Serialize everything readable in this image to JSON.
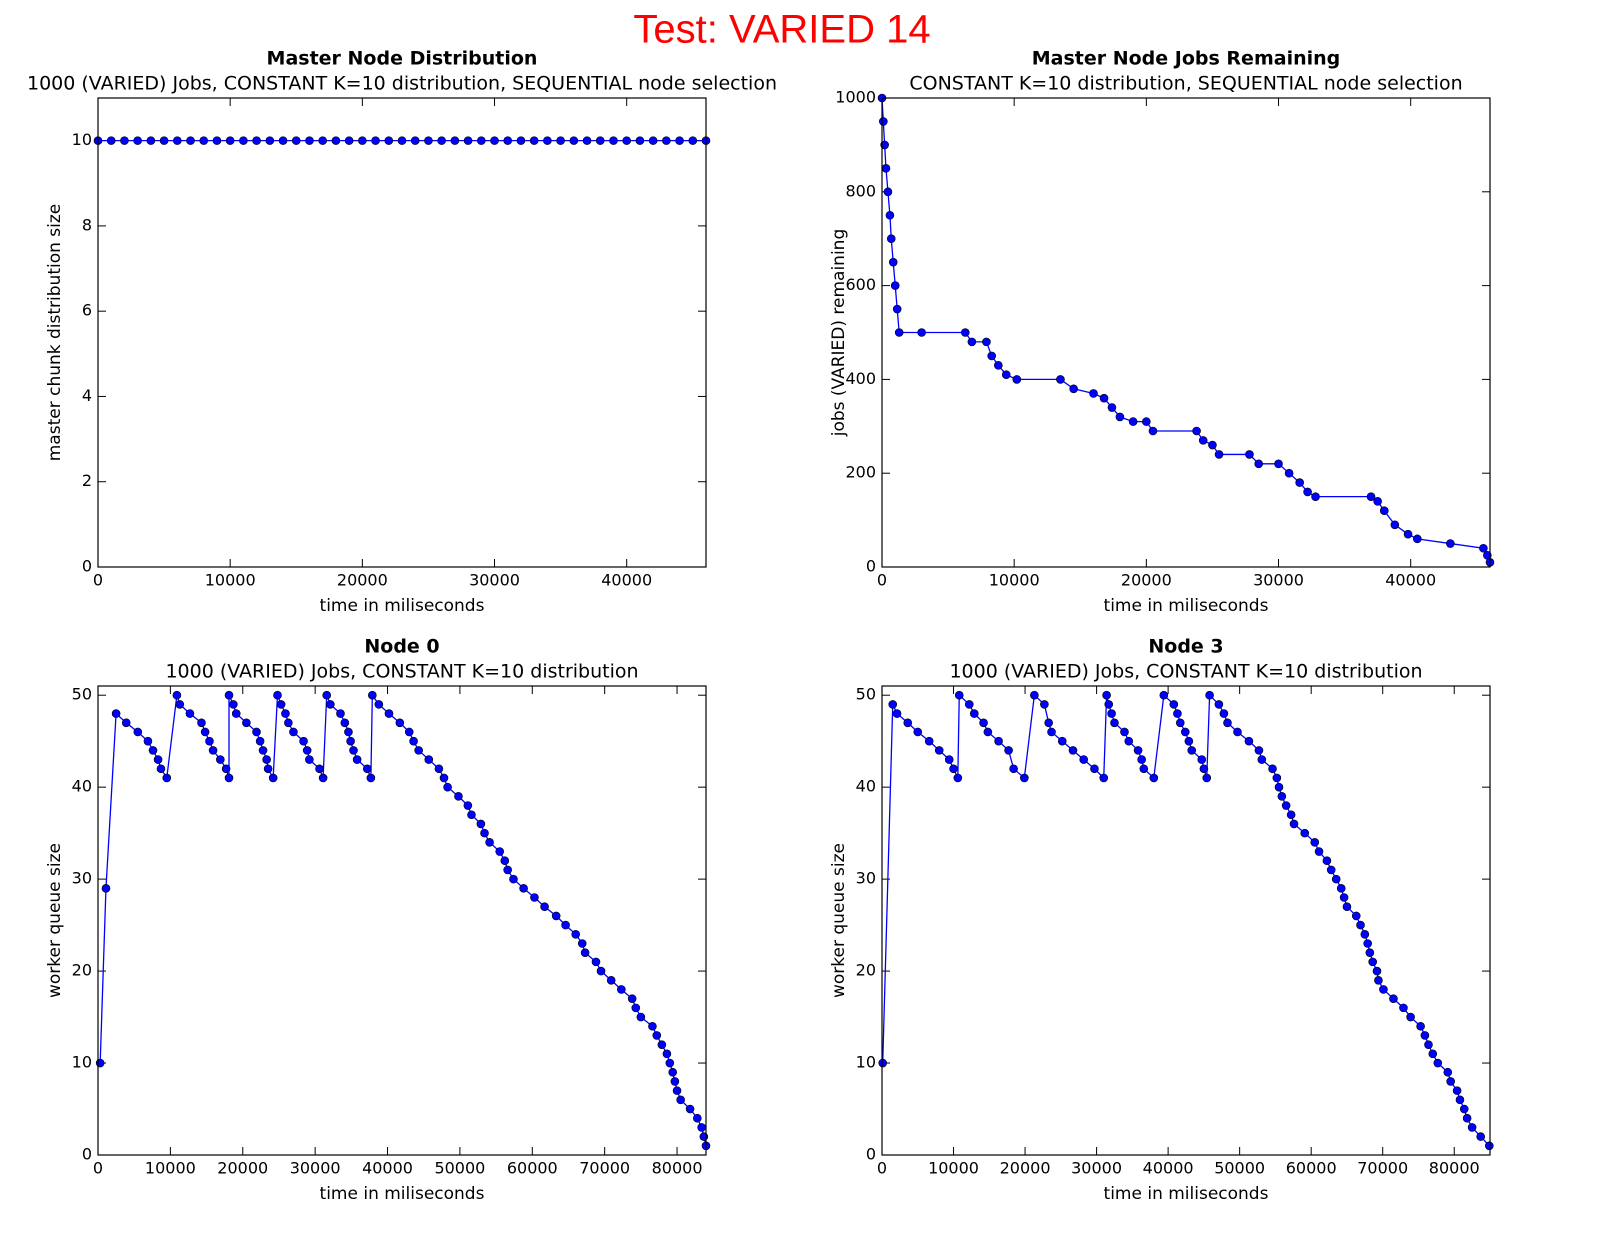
{
  "title": "Test: VARIED 14",
  "chart_data": [
    {
      "type": "line",
      "title": "Master Node Distribution",
      "subtitle": "1000 (VARIED) Jobs, CONSTANT K=10 distribution, SEQUENTIAL node selection",
      "xlabel": "time in miliseconds",
      "ylabel": "master chunk distribution size",
      "color": "#0000ff",
      "x": [
        0,
        1000,
        2000,
        3000,
        4000,
        5000,
        6000,
        7000,
        8000,
        9000,
        10000,
        11000,
        12000,
        13000,
        14000,
        15000,
        16000,
        17000,
        18000,
        19000,
        20000,
        21000,
        22000,
        23000,
        24000,
        25000,
        26000,
        27000,
        28000,
        29000,
        30000,
        31000,
        32000,
        33000,
        34000,
        35000,
        36000,
        37000,
        38000,
        39000,
        40000,
        41000,
        42000,
        43000,
        44000,
        45000,
        46000
      ],
      "values": [
        10,
        10,
        10,
        10,
        10,
        10,
        10,
        10,
        10,
        10,
        10,
        10,
        10,
        10,
        10,
        10,
        10,
        10,
        10,
        10,
        10,
        10,
        10,
        10,
        10,
        10,
        10,
        10,
        10,
        10,
        10,
        10,
        10,
        10,
        10,
        10,
        10,
        10,
        10,
        10,
        10,
        10,
        10,
        10,
        10,
        10,
        10
      ],
      "xlim": [
        0,
        46000
      ],
      "xticks": [
        0,
        10000,
        20000,
        30000,
        40000
      ],
      "ylim": [
        0,
        11
      ],
      "yticks": [
        0,
        2,
        4,
        6,
        8,
        10
      ]
    },
    {
      "type": "line",
      "title": "Master Node Jobs Remaining",
      "subtitle": "CONSTANT K=10 distribution, SEQUENTIAL node selection",
      "xlabel": "time in miliseconds",
      "ylabel": "jobs (VARIED) remaining",
      "color": "#0000ff",
      "x": [
        0,
        100,
        200,
        300,
        450,
        600,
        700,
        850,
        1000,
        1150,
        1300,
        3000,
        6300,
        6800,
        7900,
        8300,
        8800,
        9400,
        10200,
        13500,
        14500,
        16000,
        16800,
        17400,
        18000,
        19000,
        20000,
        20500,
        23800,
        24300,
        25000,
        25500,
        27800,
        28500,
        30000,
        30800,
        31600,
        32200,
        32800,
        37000,
        37500,
        38000,
        38800,
        39800,
        40500,
        43000,
        45500,
        45800,
        46000
      ],
      "values": [
        1000,
        950,
        900,
        850,
        800,
        750,
        700,
        650,
        600,
        550,
        500,
        500,
        500,
        480,
        480,
        450,
        430,
        410,
        400,
        400,
        380,
        370,
        360,
        340,
        320,
        310,
        310,
        290,
        290,
        270,
        260,
        240,
        240,
        220,
        220,
        200,
        180,
        160,
        150,
        150,
        140,
        120,
        90,
        70,
        60,
        50,
        40,
        25,
        10
      ],
      "xlim": [
        0,
        46000
      ],
      "xticks": [
        0,
        10000,
        20000,
        30000,
        40000
      ],
      "ylim": [
        0,
        1000
      ],
      "yticks": [
        0,
        200,
        400,
        600,
        800,
        1000
      ]
    },
    {
      "type": "line",
      "title": "Node 0",
      "subtitle": "1000 (VARIED) Jobs, CONSTANT K=10 distribution",
      "xlabel": "time in miliseconds",
      "ylabel": "worker queue size",
      "color": "#0000ff",
      "x": [
        300,
        1100,
        2500,
        3900,
        5500,
        6900,
        7600,
        8300,
        8700,
        9500,
        10900,
        11300,
        12700,
        14300,
        14800,
        15400,
        15900,
        16900,
        17700,
        18100,
        18100,
        18700,
        19100,
        20500,
        21900,
        22400,
        22800,
        23300,
        23500,
        24200,
        24800,
        25300,
        25900,
        26300,
        27000,
        28400,
        28900,
        29200,
        30600,
        31100,
        31600,
        32100,
        33500,
        34100,
        34600,
        34900,
        35300,
        35800,
        37200,
        37700,
        37900,
        38800,
        40200,
        41700,
        43000,
        43600,
        44300,
        45700,
        47100,
        47800,
        48300,
        49800,
        51100,
        51600,
        52900,
        53400,
        54100,
        55500,
        56200,
        56600,
        57400,
        58800,
        60300,
        61700,
        63300,
        64600,
        66000,
        66900,
        67300,
        68800,
        69500,
        70900,
        72300,
        73800,
        74300,
        75000,
        76600,
        77200,
        77900,
        78600,
        79000,
        79400,
        79700,
        80000,
        80500,
        81800,
        82800,
        83400,
        83700,
        84000
      ],
      "values": [
        10,
        29,
        48,
        47,
        46,
        45,
        44,
        43,
        42,
        41,
        50,
        49,
        48,
        47,
        46,
        45,
        44,
        43,
        42,
        41,
        50,
        49,
        48,
        47,
        46,
        45,
        44,
        43,
        42,
        41,
        50,
        49,
        48,
        47,
        46,
        45,
        44,
        43,
        42,
        41,
        50,
        49,
        48,
        47,
        46,
        45,
        44,
        43,
        42,
        41,
        50,
        49,
        48,
        47,
        46,
        45,
        44,
        43,
        42,
        41,
        40,
        39,
        38,
        37,
        36,
        35,
        34,
        33,
        32,
        31,
        30,
        29,
        28,
        27,
        26,
        25,
        24,
        23,
        22,
        21,
        20,
        19,
        18,
        17,
        16,
        15,
        14,
        13,
        12,
        11,
        10,
        9,
        8,
        7,
        6,
        5,
        4,
        3,
        2,
        1
      ],
      "xlim": [
        0,
        84000
      ],
      "xticks": [
        0,
        10000,
        20000,
        30000,
        40000,
        50000,
        60000,
        70000,
        80000
      ],
      "ylim": [
        0,
        51
      ],
      "yticks": [
        0,
        10,
        20,
        30,
        40,
        50
      ]
    },
    {
      "type": "line",
      "title": "Node 3",
      "subtitle": "1000 (VARIED) Jobs, CONSTANT K=10 distribution",
      "xlabel": "time in miliseconds",
      "ylabel": "worker queue size",
      "color": "#0000ff",
      "x": [
        100,
        1500,
        2100,
        3600,
        5000,
        6600,
        8000,
        9400,
        10000,
        10600,
        10800,
        12200,
        12900,
        14200,
        14800,
        16300,
        17700,
        18400,
        19900,
        21300,
        22700,
        23300,
        23700,
        25200,
        26700,
        28200,
        29700,
        31000,
        31400,
        31700,
        32100,
        32500,
        33900,
        34500,
        35800,
        36300,
        36600,
        38000,
        39400,
        40800,
        41300,
        41700,
        42400,
        42900,
        43300,
        44700,
        45000,
        45400,
        45800,
        47100,
        47800,
        48300,
        49700,
        51300,
        52700,
        53100,
        54600,
        55200,
        55500,
        55900,
        56500,
        57200,
        57600,
        59100,
        60500,
        61100,
        62200,
        62800,
        63500,
        64200,
        64600,
        65000,
        66300,
        66900,
        67500,
        67900,
        68200,
        68600,
        69200,
        69400,
        70100,
        71500,
        72900,
        73900,
        75300,
        75900,
        76400,
        77000,
        77700,
        79100,
        79500,
        80400,
        80800,
        81400,
        81800,
        82500,
        83700,
        84900
      ],
      "values": [
        10,
        49,
        48,
        47,
        46,
        45,
        44,
        43,
        42,
        41,
        50,
        49,
        48,
        47,
        46,
        45,
        44,
        42,
        41,
        50,
        49,
        47,
        46,
        45,
        44,
        43,
        42,
        41,
        50,
        49,
        48,
        47,
        46,
        45,
        44,
        43,
        42,
        41,
        50,
        49,
        48,
        47,
        46,
        45,
        44,
        43,
        42,
        41,
        50,
        49,
        48,
        47,
        46,
        45,
        44,
        43,
        42,
        41,
        40,
        39,
        38,
        37,
        36,
        35,
        34,
        33,
        32,
        31,
        30,
        29,
        28,
        27,
        26,
        25,
        24,
        23,
        22,
        21,
        20,
        19,
        18,
        17,
        16,
        15,
        14,
        13,
        12,
        11,
        10,
        9,
        8,
        7,
        6,
        5,
        4,
        3,
        2,
        1
      ],
      "xlim": [
        0,
        85000
      ],
      "xticks": [
        0,
        10000,
        20000,
        30000,
        40000,
        50000,
        60000,
        70000,
        80000
      ],
      "ylim": [
        0,
        51
      ],
      "yticks": [
        0,
        10,
        20,
        30,
        40,
        50
      ]
    }
  ]
}
